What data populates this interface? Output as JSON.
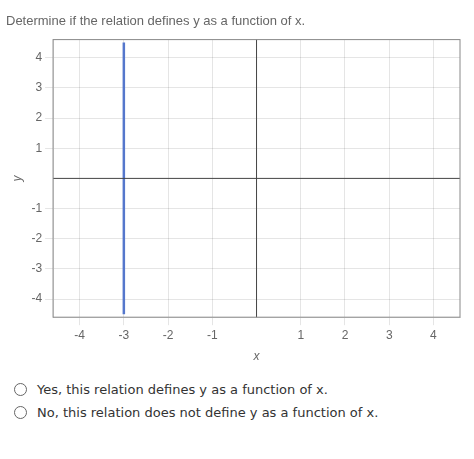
{
  "chart_data": {
    "type": "line",
    "title": "Determine if the relation defines y as a function of x.",
    "xlabel": "x",
    "ylabel": "y",
    "xlim": [
      -4.6,
      4.6
    ],
    "ylim": [
      -4.6,
      4.6
    ],
    "xticks": [
      -4,
      -3,
      -2,
      -1,
      1,
      2,
      3,
      4
    ],
    "yticks": [
      -4,
      -3,
      -2,
      -1,
      1,
      2,
      3,
      4
    ],
    "grid": true,
    "series": [
      {
        "x": [
          -3,
          -3
        ],
        "values": [
          -4.5,
          4.5
        ],
        "color": "#5577cc"
      }
    ],
    "annotations": [
      "Yes, this relation defines y as a function of x.",
      "No, this relation does not define y as a function of x."
    ]
  }
}
